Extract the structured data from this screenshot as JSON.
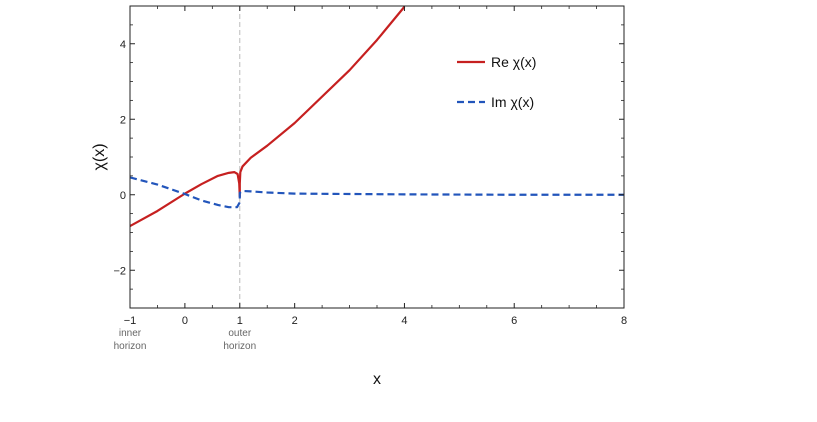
{
  "chart_data": {
    "type": "line",
    "xlabel": "x",
    "ylabel": "χ(x)",
    "xlim": [
      -1,
      8
    ],
    "ylim": [
      -3,
      5
    ],
    "x_ticks": [
      -1,
      0,
      1,
      2,
      4,
      6,
      8
    ],
    "x_tick_labels": [
      "−1",
      "0",
      "1",
      "2",
      "4",
      "6",
      "8"
    ],
    "y_ticks": [
      -2,
      0,
      2,
      4
    ],
    "y_tick_labels": [
      "−2",
      "0",
      "2",
      "4"
    ],
    "vline": {
      "x": 1,
      "style": "dashed",
      "color": "#bbbbbb"
    },
    "annotations": [
      {
        "x": -1,
        "text_lines": [
          "inner",
          "horizon"
        ]
      },
      {
        "x": 1,
        "text_lines": [
          "outer",
          "horizon"
        ]
      }
    ],
    "legend_position": "top-right",
    "series": [
      {
        "name": "Re χ(x)",
        "color": "#c62020",
        "style": "solid",
        "points": [
          [
            -1,
            -0.83
          ],
          [
            -0.5,
            -0.43
          ],
          [
            0,
            0.03
          ],
          [
            0.3,
            0.28
          ],
          [
            0.6,
            0.5
          ],
          [
            0.8,
            0.58
          ],
          [
            0.9,
            0.6
          ],
          [
            0.96,
            0.55
          ],
          [
            0.99,
            0.3
          ],
          [
            1.0,
            -0.05
          ],
          [
            1.0,
            0.3
          ],
          [
            1.01,
            0.6
          ],
          [
            1.05,
            0.75
          ],
          [
            1.2,
            0.98
          ],
          [
            1.5,
            1.3
          ],
          [
            2,
            1.9
          ],
          [
            3,
            3.3
          ],
          [
            3.5,
            4.1
          ],
          [
            4,
            4.98
          ]
        ]
      },
      {
        "name": "Im χ(x)",
        "color": "#2255bb",
        "style": "dashed",
        "points": [
          [
            -1,
            0.46
          ],
          [
            -0.5,
            0.27
          ],
          [
            0,
            0.02
          ],
          [
            0.3,
            -0.15
          ],
          [
            0.6,
            -0.27
          ],
          [
            0.8,
            -0.33
          ],
          [
            0.95,
            -0.33
          ],
          [
            1.0,
            -0.2
          ],
          [
            1.0,
            0.05
          ],
          [
            1.05,
            0.1
          ],
          [
            1.2,
            0.09
          ],
          [
            1.5,
            0.06
          ],
          [
            2,
            0.03
          ],
          [
            3,
            0.02
          ],
          [
            4,
            0.01
          ],
          [
            6,
            0.0
          ],
          [
            8,
            0.0
          ]
        ]
      }
    ]
  }
}
